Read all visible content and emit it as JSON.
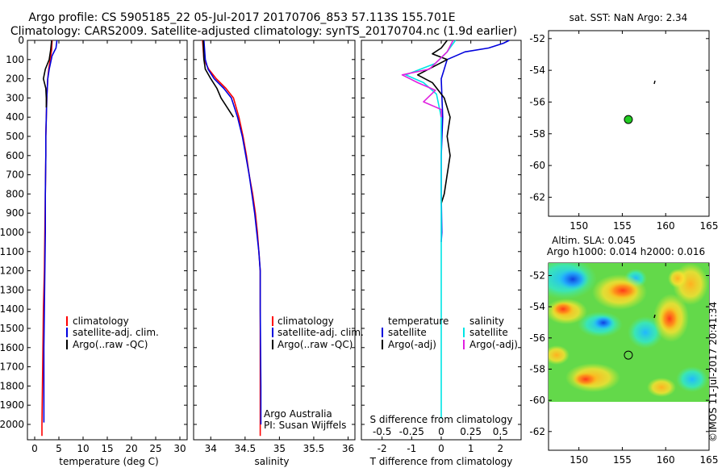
{
  "header": {
    "line1": "Argo profile: CS 5905185_22 05-Jul-2017 20170706_853 57.113S 155.701E",
    "line2": "Climatology: CARS2009. Satellite-adjusted climatology: synTS_20170704.nc (1.9d earlier)"
  },
  "annotations": {
    "argo_australia": "Argo Australia",
    "pi": "PI: Susan Wijffels",
    "watermark": "©IMOS 11-Jul-2017 20:41:34"
  },
  "colors": {
    "climatology": "#ff0000",
    "satellite": "#0000dd",
    "argo": "#000000",
    "sal_satellite": "#00e5e5",
    "sal_argo": "#e020e0",
    "float_marker": "#22cc22"
  },
  "chart_data": [
    {
      "id": "temperature",
      "type": "line",
      "xlabel": "temperature (deg C)",
      "ylabel": "",
      "xlim": [
        -1.5,
        31.5
      ],
      "ylim": [
        2080,
        0
      ],
      "xticks": [
        0,
        5,
        10,
        15,
        20,
        25,
        30
      ],
      "yticks": [
        0,
        100,
        200,
        300,
        400,
        500,
        600,
        700,
        800,
        900,
        1000,
        1100,
        1200,
        1300,
        1400,
        1500,
        1600,
        1700,
        1800,
        1900,
        2000
      ],
      "legend": [
        "climatology",
        "satellite-adj. clim.",
        "Argo(..raw -QC)"
      ],
      "series": [
        {
          "name": "climatology",
          "color": "#ff0000",
          "x": [
            3.6,
            3.5,
            3.2,
            2.9,
            2.7,
            2.6,
            2.5,
            2.4,
            2.3,
            2.3,
            2.2,
            2.1,
            2.0,
            1.8,
            1.7,
            1.6,
            1.5,
            1.5
          ],
          "y": [
            0,
            50,
            100,
            150,
            200,
            250,
            300,
            400,
            500,
            600,
            800,
            1000,
            1200,
            1400,
            1600,
            1800,
            2000,
            2060
          ]
        },
        {
          "name": "satellite-adj. clim.",
          "color": "#0000dd",
          "x": [
            4.6,
            4.4,
            3.6,
            3.0,
            2.7,
            2.6,
            2.5,
            2.4,
            2.3,
            2.3,
            2.2,
            2.2,
            2.1,
            2.0,
            1.9,
            1.9,
            1.9
          ],
          "y": [
            0,
            40,
            80,
            150,
            200,
            250,
            300,
            400,
            500,
            600,
            800,
            1000,
            1200,
            1400,
            1600,
            1800,
            1990
          ]
        },
        {
          "name": "Argo(..raw -QC)",
          "color": "#000000",
          "x": [
            3.5,
            3.3,
            3.0,
            2.2,
            1.8,
            2.3,
            2.4,
            2.4
          ],
          "y": [
            0,
            50,
            100,
            150,
            200,
            250,
            300,
            350
          ]
        }
      ]
    },
    {
      "id": "salinity",
      "type": "line",
      "xlabel": "salinity",
      "ylabel": "",
      "xlim": [
        33.75,
        36.1
      ],
      "ylim": [
        2080,
        0
      ],
      "xticks": [
        34,
        34.5,
        35,
        35.5,
        36
      ],
      "xticklabels": [
        "34",
        "34.5",
        "35",
        "35.5",
        "36"
      ],
      "legend": [
        "climatology",
        "satellite-adj. clim.",
        "Argo(..raw -QC)"
      ],
      "series": [
        {
          "name": "climatology",
          "color": "#ff0000",
          "x": [
            33.88,
            33.9,
            33.97,
            34.08,
            34.22,
            34.33,
            34.41,
            34.47,
            34.52,
            34.56,
            34.61,
            34.65,
            34.68,
            34.7,
            34.72,
            34.72,
            34.72,
            34.72
          ],
          "y": [
            0,
            100,
            150,
            200,
            250,
            300,
            400,
            500,
            600,
            700,
            800,
            900,
            1000,
            1100,
            1200,
            1400,
            1800,
            2060
          ]
        },
        {
          "name": "satellite-adj. clim.",
          "color": "#0000dd",
          "x": [
            33.9,
            33.92,
            33.96,
            34.05,
            34.19,
            34.3,
            34.39,
            34.46,
            34.51,
            34.56,
            34.6,
            34.64,
            34.67,
            34.7,
            34.72,
            34.72,
            34.73,
            34.73
          ],
          "y": [
            0,
            100,
            150,
            200,
            250,
            300,
            400,
            500,
            600,
            700,
            800,
            900,
            1000,
            1100,
            1200,
            1400,
            1800,
            2000
          ]
        },
        {
          "name": "Argo(..raw -QC)",
          "color": "#000000",
          "x": [
            33.89,
            33.9,
            33.92,
            34.0,
            34.09,
            34.15,
            34.24,
            34.33
          ],
          "y": [
            0,
            100,
            150,
            200,
            250,
            300,
            350,
            400
          ]
        }
      ]
    },
    {
      "id": "difference",
      "type": "line",
      "xlabel": "T difference from climatology",
      "xlabel_top": "S difference from climatology",
      "xlim": [
        -2.7,
        2.7
      ],
      "ylim": [
        2080,
        0
      ],
      "xticks": [
        -2,
        -1,
        0,
        1,
        2
      ],
      "xticklabels": [
        "-2",
        "-1",
        "0",
        "1",
        "2"
      ],
      "xticks_top": [
        -0.5,
        -0.25,
        0,
        0.25,
        0.5
      ],
      "xticklabels_top": [
        "-0.5",
        "-0.25",
        "0",
        "0.25",
        "0.5"
      ],
      "legend_headers": [
        "temperature",
        "salinity"
      ],
      "legend": [
        "satellite",
        "Argo(-adj)",
        "satellite",
        "Argo(-adj)"
      ],
      "series": [
        {
          "name": "satellite",
          "group": "temperature",
          "color": "#0000dd",
          "x": [
            2.3,
            2.1,
            1.6,
            0.8,
            0.2,
            0.1,
            0.0,
            0.05,
            0.0,
            0.0,
            0.02,
            0.0
          ],
          "y": [
            0,
            15,
            40,
            60,
            100,
            150,
            200,
            400,
            600,
            800,
            1000,
            1050
          ]
        },
        {
          "name": "Argo(-adj)",
          "group": "temperature",
          "color": "#000000",
          "x": [
            0.2,
            0.0,
            -0.3,
            0.2,
            -0.8,
            -0.3,
            0.1,
            0.3,
            0.2,
            0.3,
            0.2,
            0.1,
            0.0
          ],
          "y": [
            0,
            40,
            70,
            100,
            180,
            220,
            300,
            400,
            500,
            600,
            700,
            800,
            850
          ]
        },
        {
          "name": "satellite",
          "group": "salinity",
          "color": "#00e5e5",
          "x": [
            0.12,
            0.05,
            -0.05,
            -0.3,
            -0.15,
            -0.04,
            0.0,
            0.0,
            0.0,
            0.0,
            0.0,
            0.0,
            0.0
          ],
          "y": [
            0,
            60,
            120,
            180,
            220,
            280,
            400,
            600,
            800,
            1000,
            1200,
            1600,
            1970
          ]
        },
        {
          "name": "Argo(-adj)",
          "group": "salinity",
          "color": "#e020e0",
          "x": [
            0.1,
            0.05,
            -0.1,
            -0.33,
            -0.2,
            -0.05,
            -0.15,
            0.0,
            0.0
          ],
          "y": [
            0,
            60,
            150,
            180,
            220,
            260,
            320,
            360,
            400
          ]
        }
      ]
    },
    {
      "id": "sst_map",
      "type": "scatter",
      "title": "sat. SST: NaN Argo: 2.34",
      "xlim": [
        146.5,
        165
      ],
      "ylim": [
        -63.2,
        -51.5
      ],
      "xticks": [
        150,
        155,
        160,
        165
      ],
      "yticks": [
        -52,
        -54,
        -56,
        -58,
        -60,
        -62
      ],
      "points": [
        {
          "x": 155.7,
          "y": -57.1,
          "fill": "#22cc22"
        }
      ]
    },
    {
      "id": "sla_map",
      "type": "heatmap",
      "title": "Altim. SLA: 0.045",
      "subtitle": "Argo h1000: 0.014 h2000: 0.016",
      "xlim": [
        146.5,
        165
      ],
      "ylim": [
        -63.2,
        -51.2
      ],
      "data_ylim": [
        -60,
        -51.2
      ],
      "xticks": [
        150,
        155,
        160,
        165
      ],
      "yticks": [
        -52,
        -54,
        -56,
        -58,
        -60,
        -62
      ],
      "points": [
        {
          "x": 155.7,
          "y": -57.1
        }
      ]
    }
  ]
}
